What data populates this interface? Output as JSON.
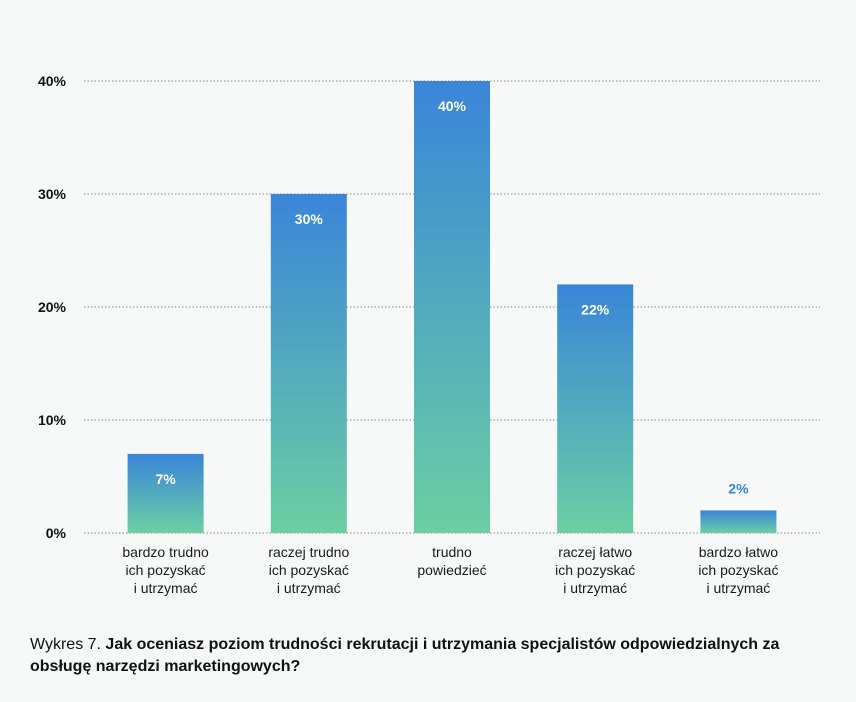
{
  "chart_data": {
    "type": "bar",
    "categories": [
      "bardzo trudno\nich pozyskać\ni utrzymać",
      "raczej trudno\nich pozyskać\ni utrzymać",
      "trudno\npowiedzieć",
      "raczej łatwo\nich pozyskać\ni utrzymać",
      "bardzo łatwo\nich pozyskać\ni utrzymać"
    ],
    "values": [
      7,
      30,
      40,
      22,
      2
    ],
    "value_labels": [
      "7%",
      "30%",
      "40%",
      "22%",
      "2%"
    ],
    "ylim": [
      0,
      40
    ],
    "yticks": [
      0,
      10,
      20,
      30,
      40
    ],
    "ytick_labels": [
      "0%",
      "10%",
      "20%",
      "30%",
      "40%"
    ],
    "grid": true,
    "colors": {
      "bar_top": "#3a85d9",
      "bar_bottom": "#6bcfa3",
      "label_inside": "#ffffff",
      "label_outside": "#3a85d9",
      "grid": "#8a8a8a"
    }
  },
  "caption": {
    "prefix": "Wykres 7. ",
    "title": "Jak oceniasz poziom trudności rekrutacji i utrzymania specjalistów odpowiedzialnych za obsługę narzędzi marketingowych?"
  }
}
